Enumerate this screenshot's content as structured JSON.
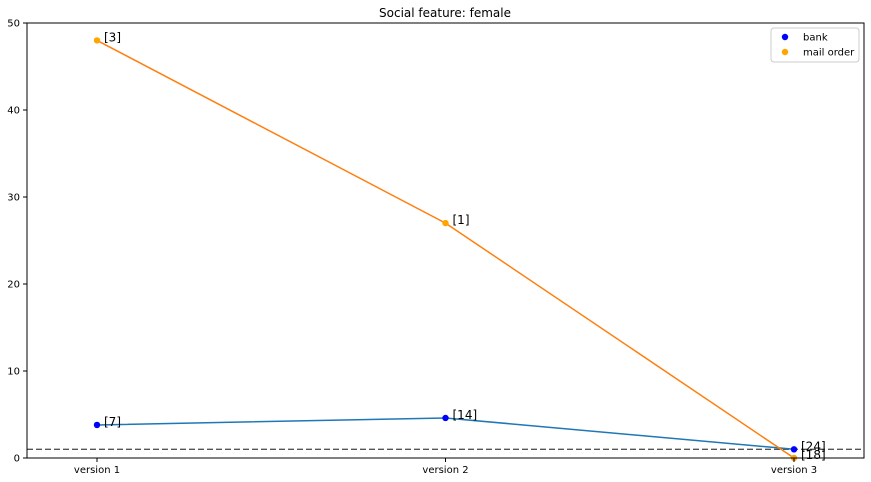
{
  "chart_data": {
    "type": "line",
    "title": "Social feature: female",
    "xlabel": "",
    "ylabel": "",
    "categories": [
      "version 1",
      "version 2",
      "version 3"
    ],
    "ylim": [
      0,
      50
    ],
    "yticks": [
      0,
      10,
      20,
      30,
      40,
      50
    ],
    "grid": false,
    "legend_position": "top-right",
    "reference_line": {
      "y": 1.0,
      "style": "dashed",
      "color": "#555555"
    },
    "series": [
      {
        "name": "bank",
        "values": [
          3.8,
          4.6,
          1.0
        ],
        "labels": [
          "[7]",
          "[14]",
          "[24]"
        ],
        "line_color": "#1f77b4",
        "marker_color": "#0000ff"
      },
      {
        "name": "mail order",
        "values": [
          48.0,
          27.0,
          0.0
        ],
        "labels": [
          "[3]",
          "[1]",
          "[18]"
        ],
        "line_color": "#ff7f0e",
        "marker_color": "#ffa500"
      }
    ]
  }
}
